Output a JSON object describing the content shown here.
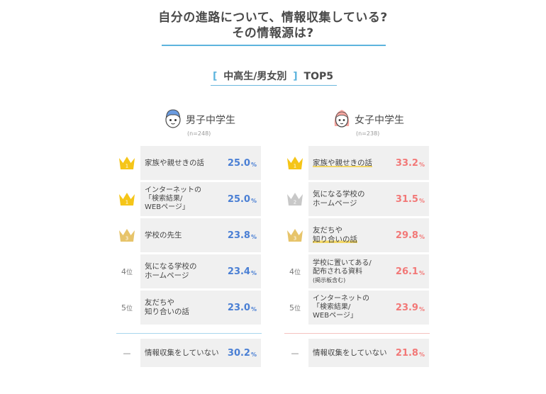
{
  "title_line1": "自分の進路について、情報収集している?",
  "title_line2": "その情報源は?",
  "subtitle": {
    "open": "[",
    "text": "中高生/男女別",
    "close": "]",
    "top": "TOP5"
  },
  "colors": {
    "boys_value": "#4a7fd4",
    "girls_value": "#f27877",
    "accent": "#5db4dd",
    "crown_gold": "#f5c518",
    "crown_silver": "#c8c8c8",
    "crown_bronze": "#e7c46a",
    "row_bg": "#f0f0f0"
  },
  "boys": {
    "name": "男子中学生",
    "n": "(n=248)",
    "icon": "boy-face-icon",
    "ranks": [
      {
        "rank": "1",
        "label": "家族や親せきの話",
        "value": "25.0",
        "unit": "%"
      },
      {
        "rank": "1",
        "label": "インターネットの\n「検索結果/\nWEBページ」",
        "value": "25.0",
        "unit": "%"
      },
      {
        "rank": "3",
        "label": "学校の先生",
        "value": "23.8",
        "unit": "%"
      },
      {
        "rank": "4",
        "rank_suffix": "位",
        "label": "気になる学校の\nホームページ",
        "value": "23.4",
        "unit": "%"
      },
      {
        "rank": "5",
        "rank_suffix": "位",
        "label": "友だちや\n知り合いの話",
        "value": "23.0",
        "unit": "%"
      }
    ],
    "none": {
      "dash": "—",
      "label": "情報収集をしていない",
      "value": "30.2",
      "unit": "%"
    }
  },
  "girls": {
    "name": "女子中学生",
    "n": "(n=238)",
    "icon": "girl-face-icon",
    "ranks": [
      {
        "rank": "1",
        "label": "家族や親せきの話",
        "value": "33.2",
        "unit": "%"
      },
      {
        "rank": "2",
        "label": "気になる学校の\nホームページ",
        "value": "31.5",
        "unit": "%"
      },
      {
        "rank": "3",
        "label": "友だちや\n知り合いの話",
        "value": "29.8",
        "unit": "%"
      },
      {
        "rank": "4",
        "rank_suffix": "位",
        "label": "学校に置いてある/\n配布される資料",
        "note": "(掲示板含む)",
        "value": "26.1",
        "unit": "%"
      },
      {
        "rank": "5",
        "rank_suffix": "位",
        "label": "インターネットの\n「検索結果/\nWEBページ」",
        "value": "23.9",
        "unit": "%"
      }
    ],
    "none": {
      "dash": "—",
      "label": "情報収集をしていない",
      "value": "21.8",
      "unit": "%"
    }
  },
  "chart_data": [
    {
      "type": "table",
      "title": "男子中学生",
      "rows": [
        {
          "rank": 1,
          "label": "家族や親せきの話",
          "value": 25.0
        },
        {
          "rank": 1,
          "label": "インターネットの「検索結果/WEBページ」",
          "value": 25.0
        },
        {
          "rank": 3,
          "label": "学校の先生",
          "value": 23.8
        },
        {
          "rank": 4,
          "label": "気になる学校のホームページ",
          "value": 23.4
        },
        {
          "rank": 5,
          "label": "友だちや知り合いの話",
          "value": 23.0
        },
        {
          "rank": null,
          "label": "情報収集をしていない",
          "value": 30.2
        }
      ]
    },
    {
      "type": "table",
      "title": "女子中学生",
      "rows": [
        {
          "rank": 1,
          "label": "家族や親せきの話",
          "value": 33.2
        },
        {
          "rank": 2,
          "label": "気になる学校のホームページ",
          "value": 31.5
        },
        {
          "rank": 3,
          "label": "友だちや知り合いの話",
          "value": 29.8
        },
        {
          "rank": 4,
          "label": "学校に置いてある/配布される資料(掲示板含む)",
          "value": 26.1
        },
        {
          "rank": 5,
          "label": "インターネットの「検索結果/WEBページ」",
          "value": 23.9
        },
        {
          "rank": null,
          "label": "情報収集をしていない",
          "value": 21.8
        }
      ]
    }
  ]
}
